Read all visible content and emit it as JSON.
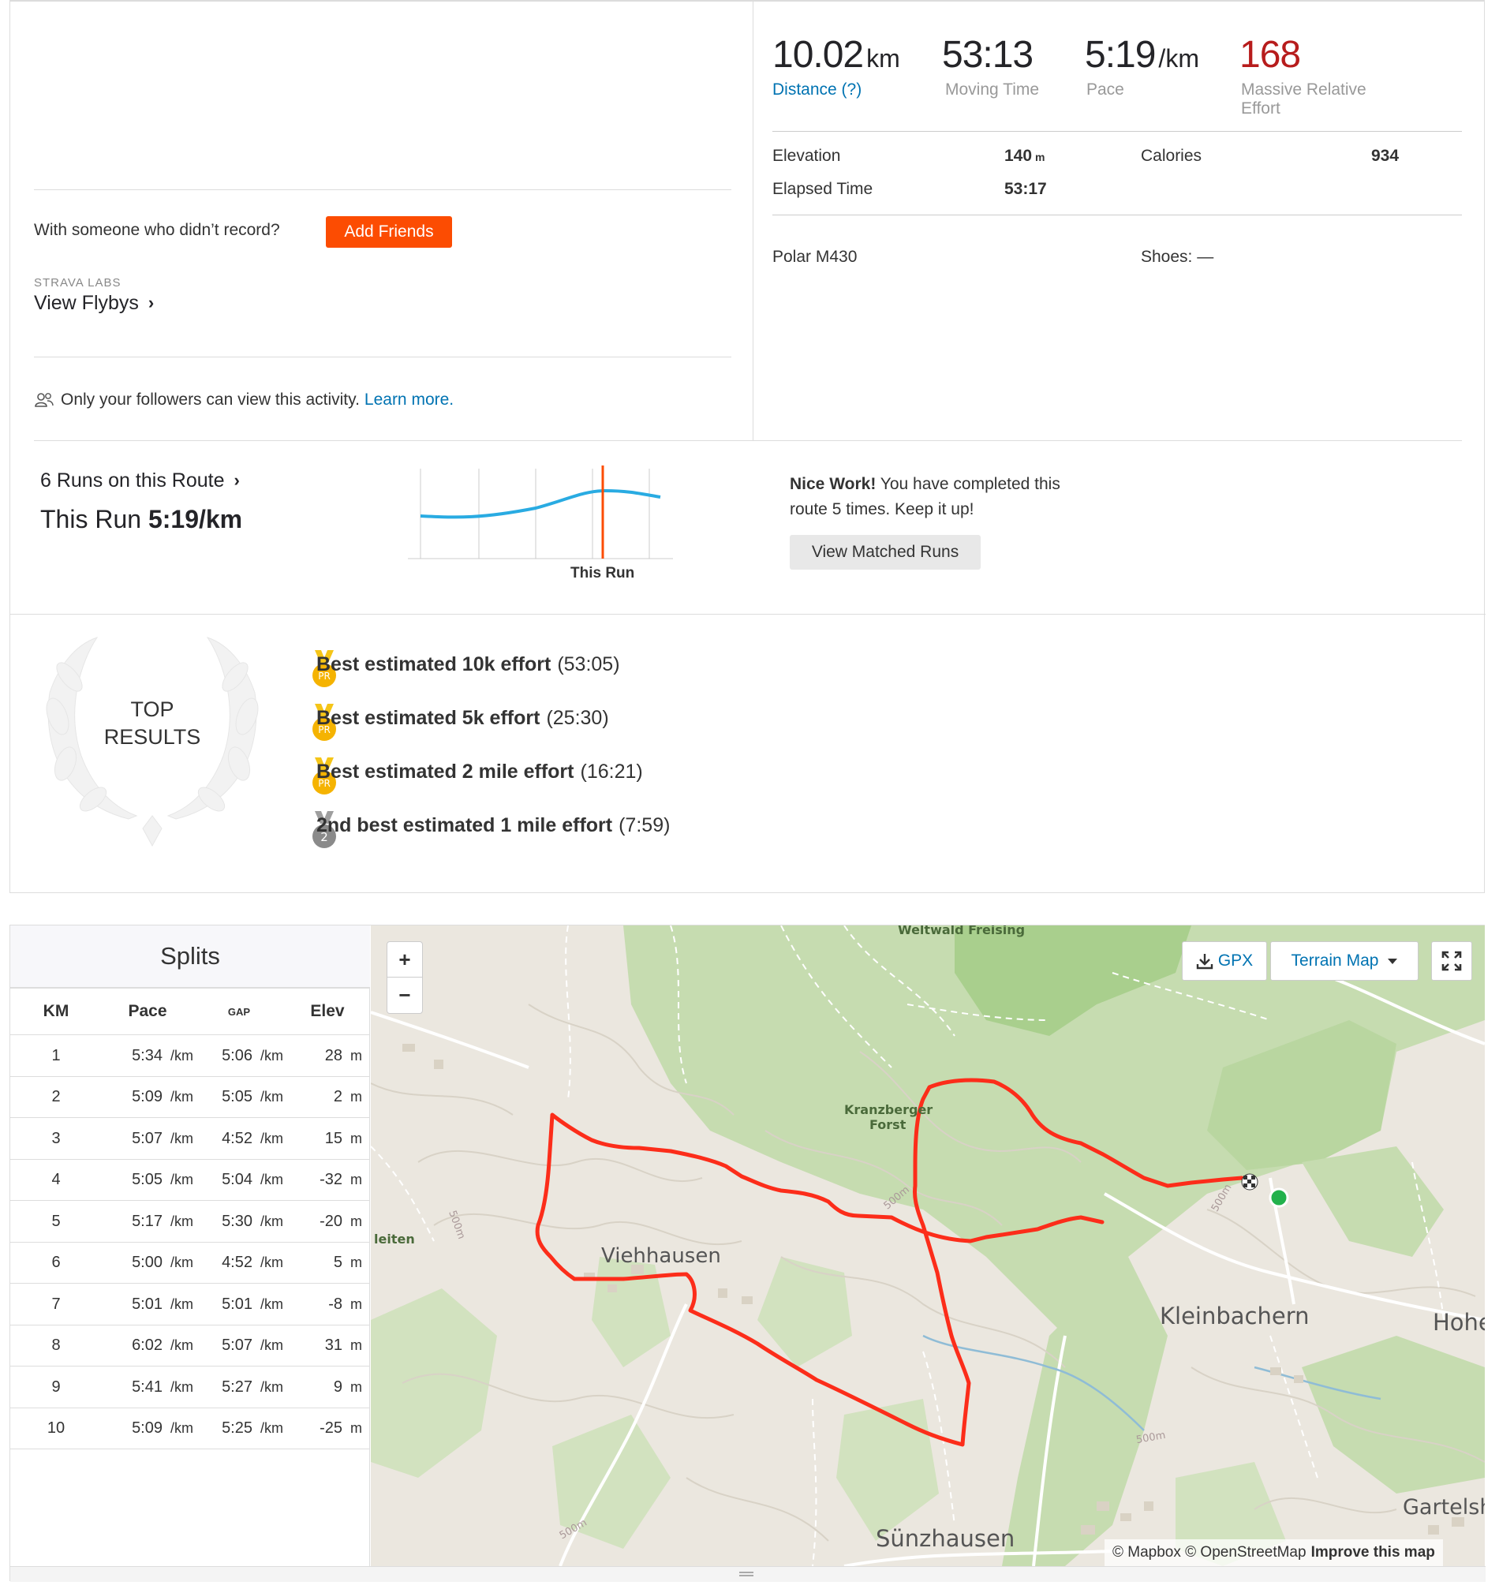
{
  "stats": {
    "distance": {
      "value": "10.02",
      "unit": "km",
      "label": "Distance (?)"
    },
    "moving_time": {
      "value": "53:13",
      "label": "Moving Time"
    },
    "pace": {
      "value": "5:19",
      "unit": "/km",
      "label": "Pace"
    },
    "effort": {
      "value": "168",
      "label_line1": "Massive Relative",
      "label_line2": "Effort"
    },
    "elevation": {
      "label": "Elevation",
      "value": "140",
      "unit": "m"
    },
    "calories": {
      "label": "Calories",
      "value": "934"
    },
    "elapsed": {
      "label": "Elapsed Time",
      "value": "53:17"
    },
    "device": "Polar M430",
    "shoes": "Shoes: —"
  },
  "friends": {
    "prompt": "With someone who didn’t record?",
    "button": "Add Friends"
  },
  "labs": {
    "caption": "STRAVA LABS",
    "link": "View Flybys"
  },
  "privacy": {
    "text": "Only your followers can view this activity.",
    "link": "Learn more."
  },
  "route": {
    "runs_link": "6 Runs on this Route",
    "this_run_label": "This Run",
    "this_run_value": "5:19/km",
    "chart_caption": "This Run",
    "nice_bold": "Nice Work!",
    "nice_line1": "You have completed this",
    "nice_line2": "route 5 times. Keep it up!",
    "matched_button": "View Matched Runs"
  },
  "top_results": {
    "title_line1": "TOP",
    "title_line2": "RESULTS",
    "items": [
      {
        "bold": "Best estimated 10k effort",
        "time": "(53:05)",
        "medal": "PR"
      },
      {
        "bold": "Best estimated 5k effort",
        "time": "(25:30)",
        "medal": "PR"
      },
      {
        "bold": "Best estimated 2 mile effort",
        "time": "(16:21)",
        "medal": "PR"
      },
      {
        "bold": "2nd best estimated 1 mile effort",
        "time": "(7:59)",
        "medal": "2"
      }
    ]
  },
  "splits": {
    "title": "Splits",
    "headers": {
      "km": "KM",
      "pace": "Pace",
      "gap": "GAP",
      "elev": "Elev"
    },
    "pace_unit": "/km",
    "elev_unit": "m",
    "rows": [
      {
        "km": "1",
        "pace": "5:34",
        "gap": "5:06",
        "elev": "28"
      },
      {
        "km": "2",
        "pace": "5:09",
        "gap": "5:05",
        "elev": "2"
      },
      {
        "km": "3",
        "pace": "5:07",
        "gap": "4:52",
        "elev": "15"
      },
      {
        "km": "4",
        "pace": "5:05",
        "gap": "5:04",
        "elev": "-32"
      },
      {
        "km": "5",
        "pace": "5:17",
        "gap": "5:30",
        "elev": "-20"
      },
      {
        "km": "6",
        "pace": "5:00",
        "gap": "4:52",
        "elev": "5"
      },
      {
        "km": "7",
        "pace": "5:01",
        "gap": "5:01",
        "elev": "-8"
      },
      {
        "km": "8",
        "pace": "6:02",
        "gap": "5:07",
        "elev": "31"
      },
      {
        "km": "9",
        "pace": "5:41",
        "gap": "5:27",
        "elev": "9"
      },
      {
        "km": "10",
        "pace": "5:09",
        "gap": "5:25",
        "elev": "-25"
      }
    ]
  },
  "map": {
    "zoom_in": "+",
    "zoom_out": "−",
    "gpx": "GPX",
    "terrain": "Terrain Map",
    "attribution": "© Mapbox © OpenStreetMap",
    "improve": "Improve this map",
    "places": {
      "weltwald": "Weltwald Freising",
      "kranz1": "Kranzberger",
      "kranz2": "Forst",
      "viehhausen": "Viehhausen",
      "kleinbachern": "Kleinbachern",
      "hoher": "Hoher",
      "gartelsha": "Gartelsha",
      "sunzhausen": "Sünzhausen",
      "leiten": "leiten",
      "c1": "500m",
      "c2": "500m",
      "c3": "500m",
      "c4": "500m",
      "c5": "500m"
    }
  },
  "colors": {
    "accent": "#fc4c02",
    "link": "#0073b2",
    "effort": "#b71c1c",
    "route": "#fc2d1a",
    "chart_line": "#29abe2"
  }
}
